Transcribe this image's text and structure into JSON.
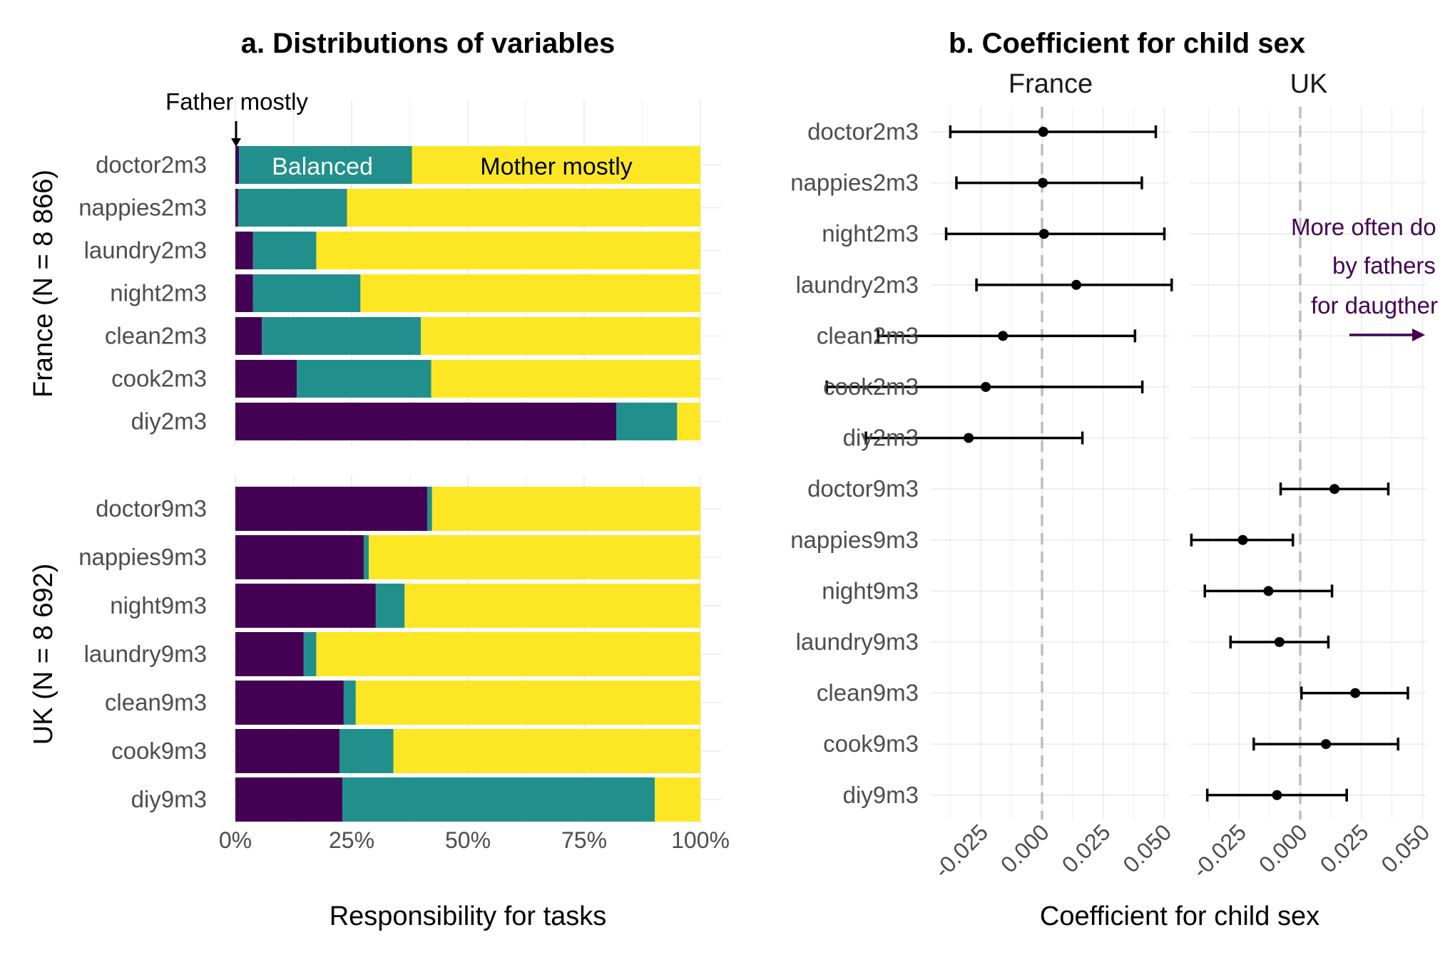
{
  "chart_data": [
    {
      "type": "bar",
      "orientation": "horizontal",
      "stacked": true,
      "title": "a. Distributions of variables",
      "xlabel": "Responsibility for tasks",
      "xlim": [
        0,
        100
      ],
      "x_ticks": [
        "0%",
        "25%",
        "50%",
        "75%",
        "100%"
      ],
      "grid": true,
      "colors": {
        "father": "#440154",
        "balanced": "#21908c",
        "mother": "#fde725"
      },
      "annotations": {
        "father": "Father mostly",
        "balanced": "Balanced",
        "mother": "Mother mostly"
      },
      "panels": [
        {
          "label": "France (N = 8 866)",
          "categories": [
            "doctor2m3",
            "nappies2m3",
            "laundry2m3",
            "night2m3",
            "clean2m3",
            "cook2m3",
            "diy2m3"
          ],
          "series": [
            {
              "key": "father",
              "values": [
                0.8,
                0.6,
                3.8,
                3.8,
                5.7,
                13.2,
                81.9
              ]
            },
            {
              "key": "balanced",
              "values": [
                37.2,
                23.4,
                13.6,
                23.1,
                34.2,
                28.9,
                13.1
              ]
            },
            {
              "key": "mother",
              "values": [
                62.0,
                76.0,
                82.6,
                73.1,
                60.1,
                57.9,
                5.0
              ]
            }
          ]
        },
        {
          "label": "UK (N = 8 692)",
          "categories": [
            "doctor9m3",
            "nappies9m3",
            "night9m3",
            "laundry9m3",
            "clean9m3",
            "cook9m3",
            "diy9m3"
          ],
          "series": [
            {
              "key": "father",
              "values": [
                41.3,
                27.6,
                30.2,
                14.7,
                23.3,
                22.4,
                23.0
              ]
            },
            {
              "key": "balanced",
              "values": [
                1.0,
                1.1,
                6.2,
                2.7,
                2.6,
                11.6,
                67.2
              ]
            },
            {
              "key": "mother",
              "values": [
                57.7,
                71.3,
                63.6,
                82.6,
                74.1,
                66.0,
                9.8
              ]
            }
          ]
        }
      ]
    },
    {
      "type": "errorbar",
      "title": "b. Coefficient for child sex",
      "xlabel": "Coefficient for child sex",
      "categories": [
        "doctor2m3",
        "nappies2m3",
        "night2m3",
        "laundry2m3",
        "clean2m3",
        "cook2m3",
        "diy2m3",
        "doctor9m3",
        "nappies9m3",
        "night9m3",
        "laundry9m3",
        "clean9m3",
        "cook9m3",
        "diy9m3"
      ],
      "x_ticks": [
        "-0.025",
        "0.000",
        "0.025",
        "0.050"
      ],
      "xlim": [
        -0.04,
        0.056
      ],
      "reference_line": 0,
      "point_color": "#000000",
      "annotation": {
        "lines": [
          "More often do",
          "by fathers",
          "for daugther"
        ],
        "color": "#440154",
        "arrow": "right"
      },
      "facets": [
        {
          "label": "France",
          "points": [
            {
              "category": "doctor2m3",
              "estimate": 0.0005,
              "lower": -0.0375,
              "upper": 0.0465
            },
            {
              "category": "nappies2m3",
              "estimate": 0.0003,
              "lower": -0.035,
              "upper": 0.0408
            },
            {
              "category": "night2m3",
              "estimate": 0.0008,
              "lower": -0.0392,
              "upper": 0.05
            },
            {
              "category": "laundry2m3",
              "estimate": 0.014,
              "lower": -0.0268,
              "upper": 0.053
            },
            {
              "category": "clean2m3",
              "estimate": -0.016,
              "lower": -0.067,
              "upper": 0.038
            },
            {
              "category": "cook2m3",
              "estimate": -0.023,
              "lower": -0.088,
              "upper": 0.041
            },
            {
              "category": "diy2m3",
              "estimate": -0.03,
              "lower": -0.072,
              "upper": 0.0165
            }
          ]
        },
        {
          "label": "UK",
          "points": [
            {
              "category": "doctor9m3",
              "estimate": 0.014,
              "lower": -0.008,
              "upper": 0.036
            },
            {
              "category": "nappies9m3",
              "estimate": -0.0235,
              "lower": -0.0445,
              "upper": -0.003
            },
            {
              "category": "night9m3",
              "estimate": -0.013,
              "lower": -0.039,
              "upper": 0.013
            },
            {
              "category": "laundry9m3",
              "estimate": -0.0085,
              "lower": -0.0285,
              "upper": 0.0115
            },
            {
              "category": "clean9m3",
              "estimate": 0.0225,
              "lower": 0.0005,
              "upper": 0.044
            },
            {
              "category": "cook9m3",
              "estimate": 0.0105,
              "lower": -0.019,
              "upper": 0.04
            },
            {
              "category": "diy9m3",
              "estimate": -0.0095,
              "lower": -0.038,
              "upper": 0.019
            }
          ]
        }
      ]
    }
  ]
}
